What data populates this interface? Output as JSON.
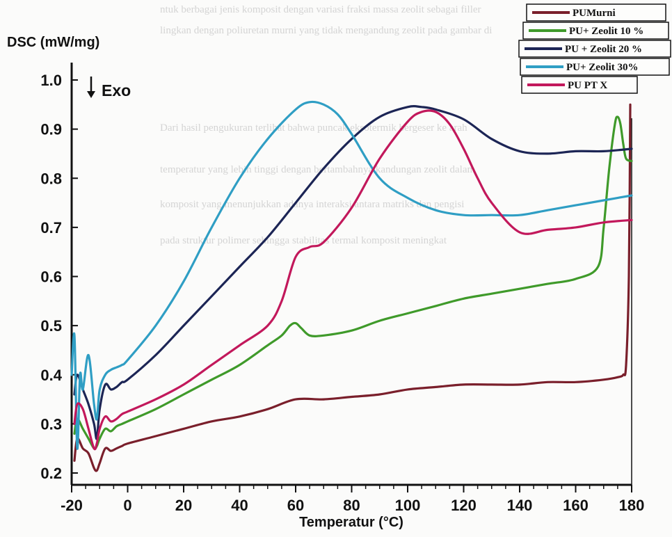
{
  "chart_data": {
    "type": "line",
    "ylabel": "DSC (mW/mg)",
    "xlabel": "Temperatur (°C)",
    "annotation": "Exo",
    "xlim": [
      -20,
      180
    ],
    "ylim": [
      0.2,
      1.0
    ],
    "xticks": [
      "-20",
      "0",
      "20",
      "40",
      "60",
      "80",
      "100",
      "120",
      "140",
      "160",
      "180"
    ],
    "yticks": [
      "0.2",
      "0.3",
      "0.4",
      "0.5",
      "0.6",
      "0.7",
      "0.8",
      "0.9",
      "1.0"
    ],
    "legend_position": "top-right",
    "grid": false,
    "series": [
      {
        "name": "PUMurni",
        "color": "#7a1f2b",
        "x": [
          -19,
          -18,
          -16,
          -14,
          -12,
          -11,
          -10,
          -8,
          -6,
          -4,
          -2,
          0,
          10,
          20,
          30,
          40,
          50,
          60,
          70,
          80,
          90,
          100,
          110,
          120,
          130,
          140,
          150,
          160,
          170,
          175,
          177,
          178,
          179,
          179.5
        ],
        "y": [
          0.225,
          0.27,
          0.25,
          0.24,
          0.21,
          0.205,
          0.22,
          0.25,
          0.245,
          0.25,
          0.255,
          0.26,
          0.275,
          0.29,
          0.305,
          0.315,
          0.33,
          0.35,
          0.35,
          0.355,
          0.36,
          0.37,
          0.375,
          0.38,
          0.38,
          0.38,
          0.385,
          0.385,
          0.39,
          0.395,
          0.4,
          0.42,
          0.6,
          0.95
        ]
      },
      {
        "name": "PU+ Zeolit 10 %",
        "color": "#3f9a2a",
        "x": [
          -19,
          -18,
          -16,
          -14,
          -12,
          -11,
          -10,
          -8,
          -6,
          -4,
          -2,
          0,
          10,
          20,
          30,
          40,
          50,
          55,
          58,
          60,
          62,
          65,
          70,
          80,
          90,
          100,
          110,
          120,
          130,
          140,
          150,
          160,
          168,
          170,
          172,
          174,
          175,
          176,
          177,
          178,
          180
        ],
        "y": [
          0.28,
          0.31,
          0.29,
          0.27,
          0.25,
          0.255,
          0.27,
          0.29,
          0.285,
          0.295,
          0.3,
          0.305,
          0.33,
          0.36,
          0.39,
          0.42,
          0.46,
          0.48,
          0.5,
          0.505,
          0.495,
          0.48,
          0.48,
          0.49,
          0.51,
          0.525,
          0.54,
          0.555,
          0.565,
          0.575,
          0.585,
          0.595,
          0.62,
          0.7,
          0.82,
          0.91,
          0.925,
          0.91,
          0.87,
          0.84,
          0.835
        ]
      },
      {
        "name": "PU + Zeolit 20 %",
        "color": "#1c2555",
        "x": [
          -19,
          -18,
          -16,
          -14,
          -12,
          -11,
          -10,
          -8,
          -6,
          -4,
          -2,
          0,
          10,
          20,
          30,
          40,
          50,
          60,
          70,
          80,
          90,
          100,
          105,
          110,
          120,
          130,
          140,
          150,
          160,
          170,
          180
        ],
        "y": [
          0.36,
          0.4,
          0.37,
          0.34,
          0.3,
          0.27,
          0.33,
          0.38,
          0.37,
          0.375,
          0.385,
          0.39,
          0.44,
          0.5,
          0.56,
          0.62,
          0.68,
          0.75,
          0.82,
          0.88,
          0.925,
          0.945,
          0.945,
          0.94,
          0.92,
          0.88,
          0.855,
          0.85,
          0.855,
          0.855,
          0.86
        ]
      },
      {
        "name": "PU+ Zeolit 30%",
        "color": "#2f9ec4",
        "x": [
          -20,
          -19,
          -18,
          -17,
          -16,
          -14,
          -12,
          -11,
          -10,
          -8,
          -6,
          -4,
          -2,
          0,
          10,
          20,
          30,
          40,
          50,
          60,
          65,
          70,
          75,
          80,
          90,
          100,
          110,
          120,
          130,
          140,
          150,
          160,
          170,
          180
        ],
        "y": [
          0.4,
          0.48,
          0.25,
          0.4,
          0.37,
          0.44,
          0.34,
          0.31,
          0.37,
          0.4,
          0.41,
          0.415,
          0.42,
          0.43,
          0.5,
          0.59,
          0.7,
          0.8,
          0.88,
          0.94,
          0.955,
          0.95,
          0.93,
          0.89,
          0.8,
          0.76,
          0.735,
          0.725,
          0.725,
          0.725,
          0.735,
          0.745,
          0.755,
          0.765
        ]
      },
      {
        "name": "PU PT X",
        "color": "#c2185b",
        "x": [
          -19,
          -18,
          -16,
          -14,
          -12,
          -11,
          -10,
          -8,
          -6,
          -4,
          -2,
          0,
          10,
          20,
          30,
          40,
          50,
          55,
          60,
          65,
          70,
          80,
          90,
          100,
          105,
          110,
          115,
          120,
          125,
          130,
          140,
          150,
          160,
          170,
          180
        ],
        "y": [
          0.3,
          0.34,
          0.33,
          0.29,
          0.25,
          0.26,
          0.29,
          0.315,
          0.305,
          0.31,
          0.32,
          0.325,
          0.35,
          0.38,
          0.42,
          0.46,
          0.5,
          0.55,
          0.64,
          0.66,
          0.67,
          0.74,
          0.84,
          0.915,
          0.935,
          0.935,
          0.91,
          0.86,
          0.8,
          0.75,
          0.69,
          0.695,
          0.7,
          0.71,
          0.715
        ]
      }
    ]
  },
  "background_text": [
    "ntuk berbagai jenis komposit dengan variasi fraksi massa zeolit sebagai filler",
    "lingkan dengan poliuretan murni yang tidak mengandung zeolit pada gambar di",
    "Dari hasil pengukuran terlihat bahwa puncak eksotermik bergeser ke arah",
    "temperatur yang lebih tinggi dengan bertambahnya kandungan zeolit dalam",
    "komposit yang menunjukkan adanya interaksi antara matriks dan pengisi",
    "pada struktur polimer sehingga stabilitas termal komposit meningkat"
  ]
}
